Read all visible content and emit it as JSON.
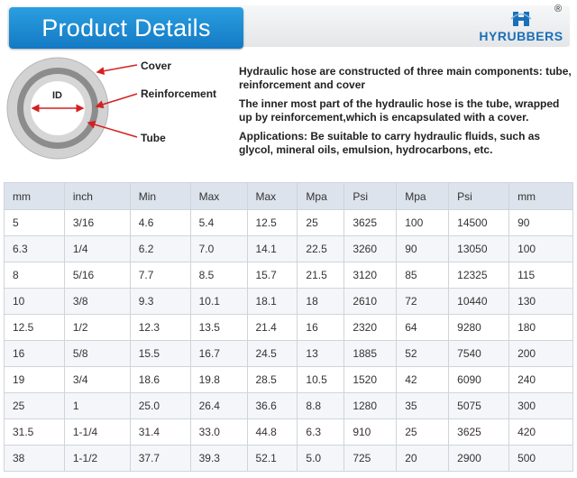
{
  "banner": {
    "title": "Product Details",
    "brand": "HYRUBBERS",
    "registered_mark": "®"
  },
  "diagram": {
    "labels": {
      "cover": "Cover",
      "reinforcement": "Reinforcement",
      "tube": "Tube",
      "id": "ID"
    },
    "colors": {
      "arrow": "#d42020",
      "reinforcement_ring": "#8c8c8c",
      "outer_ring": "#cfcfcf"
    }
  },
  "description": {
    "p1": "Hydraulic hose are constructed of three main components: tube, reinforcement and cover",
    "p2": "The inner most part of the hydraulic hose is the tube, wrapped up by reinforcement,which is encapsulated with a cover.",
    "p3": "Applications: Be suitable to carry hydraulic fluids, such as glycol, mineral oils, emulsion, hydrocarbons, etc."
  },
  "table": {
    "headers": [
      "mm",
      "inch",
      "Min",
      "Max",
      "Max",
      "Mpa",
      "Psi",
      "Mpa",
      "Psi",
      "mm"
    ],
    "rows": [
      [
        "5",
        "3/16",
        "4.6",
        "5.4",
        "12.5",
        "25",
        "3625",
        "100",
        "14500",
        "90"
      ],
      [
        "6.3",
        "1/4",
        "6.2",
        "7.0",
        "14.1",
        "22.5",
        "3260",
        "90",
        "13050",
        "100"
      ],
      [
        "8",
        "5/16",
        "7.7",
        "8.5",
        "15.7",
        "21.5",
        "3120",
        "85",
        "12325",
        "115"
      ],
      [
        "10",
        "3/8",
        "9.3",
        "10.1",
        "18.1",
        "18",
        "2610",
        "72",
        "10440",
        "130"
      ],
      [
        "12.5",
        "1/2",
        "12.3",
        "13.5",
        "21.4",
        "16",
        "2320",
        "64",
        "9280",
        "180"
      ],
      [
        "16",
        "5/8",
        "15.5",
        "16.7",
        "24.5",
        "13",
        "1885",
        "52",
        "7540",
        "200"
      ],
      [
        "19",
        "3/4",
        "18.6",
        "19.8",
        "28.5",
        "10.5",
        "1520",
        "42",
        "6090",
        "240"
      ],
      [
        "25",
        "1",
        "25.0",
        "26.4",
        "36.6",
        "8.8",
        "1280",
        "35",
        "5075",
        "300"
      ],
      [
        "31.5",
        "1-1/4",
        "31.4",
        "33.0",
        "44.8",
        "6.3",
        "910",
        "25",
        "3625",
        "420"
      ],
      [
        "38",
        "1-1/2",
        "37.7",
        "39.3",
        "52.1",
        "5.0",
        "725",
        "20",
        "2900",
        "500"
      ]
    ]
  }
}
